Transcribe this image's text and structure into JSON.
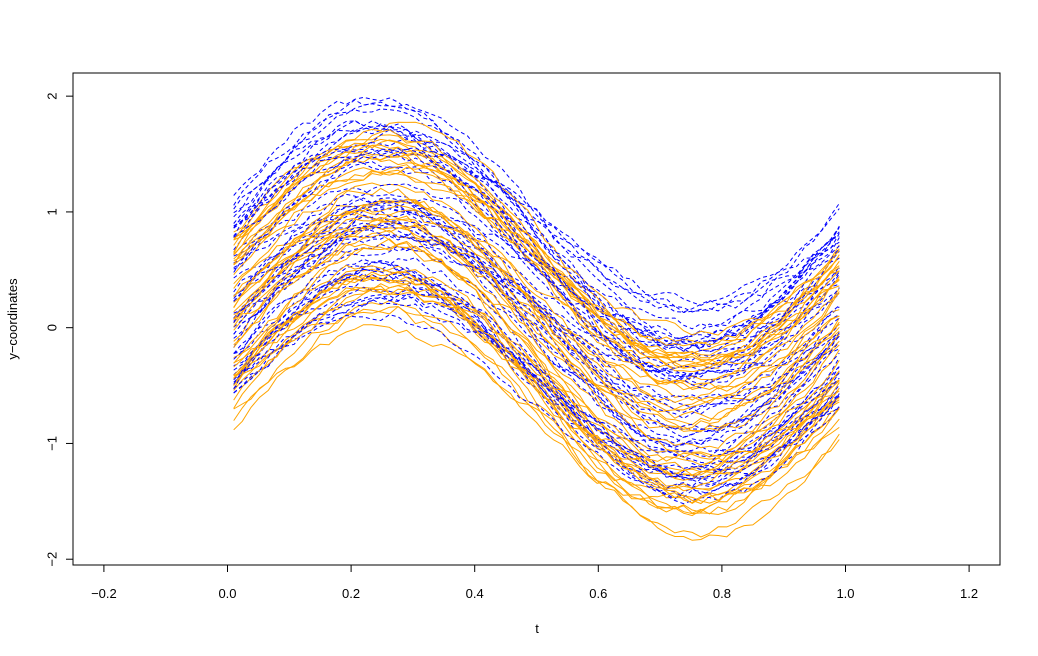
{
  "chart_data": {
    "type": "line",
    "title": "",
    "xlabel": "t",
    "ylabel": "y−coordinates",
    "xlim": [
      -0.25,
      1.25
    ],
    "ylim": [
      -2.05,
      2.2
    ],
    "x_ticks": [
      -0.2,
      0.0,
      0.2,
      0.4,
      0.6,
      0.8,
      1.0,
      1.2
    ],
    "x_tick_labels": [
      "−0.2",
      "0.0",
      "0.2",
      "0.4",
      "0.6",
      "0.8",
      "1.0",
      "1.2"
    ],
    "y_ticks": [
      -2,
      -1,
      0,
      1,
      2
    ],
    "y_tick_labels": [
      "−2",
      "−1",
      "0",
      "1",
      "2"
    ],
    "grid": false,
    "legend": "none",
    "t_range": [
      0.01,
      0.99
    ],
    "curve_model": "y = offset + amplitude * sin(2*pi*t) + noise",
    "groups": [
      {
        "style": "solid",
        "color": "#FFA500",
        "count": 50,
        "offset_range": [
          -0.85,
          0.75
        ],
        "amplitude_range": [
          0.7,
          1.1
        ]
      },
      {
        "style": "dashed",
        "color": "#0000FF",
        "count": 50,
        "offset_range": [
          -0.65,
          1.0
        ],
        "amplitude_range": [
          0.55,
          1.1
        ]
      }
    ]
  }
}
